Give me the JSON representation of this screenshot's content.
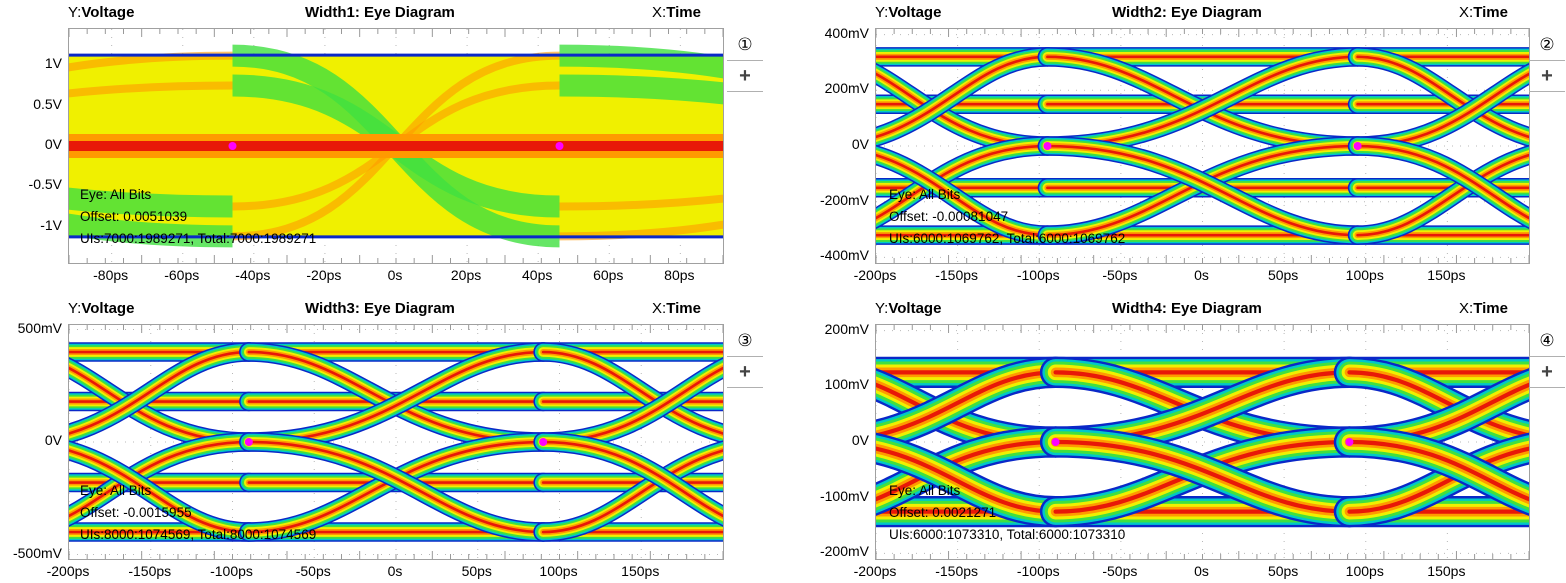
{
  "colors": {
    "low": "#0a28c8",
    "mid1": "#00c8c8",
    "mid2": "#40e040",
    "mid3": "#f0f000",
    "high1": "#ff9a00",
    "high2": "#e81808",
    "marker": "#ff00ff",
    "grid": "#b8b8b8",
    "frame": "#a0a0a0"
  },
  "chart_data": [
    {
      "type": "heatmap",
      "id": "1",
      "title": "Width1: Eye Diagram",
      "ylabel_prefix": "Y:",
      "ylabel": "Voltage",
      "xlabel_prefix": "X:",
      "xlabel": "Time",
      "xlim": [
        -92,
        92
      ],
      "x_unit": "ps",
      "ylim": [
        -1.45,
        1.45
      ],
      "y_unit": "V",
      "x_ticks": [
        {
          "v": -80,
          "label": "-80ps"
        },
        {
          "v": -60,
          "label": "-60ps"
        },
        {
          "v": -40,
          "label": "-40ps"
        },
        {
          "v": -20,
          "label": "-20ps"
        },
        {
          "v": 0,
          "label": "0s"
        },
        {
          "v": 20,
          "label": "20ps"
        },
        {
          "v": 40,
          "label": "40ps"
        },
        {
          "v": 60,
          "label": "60ps"
        },
        {
          "v": 80,
          "label": "80ps"
        }
      ],
      "y_ticks": [
        {
          "v": 1,
          "label": "1V"
        },
        {
          "v": 0.5,
          "label": "0.5V"
        },
        {
          "v": 0,
          "label": "0V"
        },
        {
          "v": -0.5,
          "label": "-0.5V"
        },
        {
          "v": -1,
          "label": "-1V"
        }
      ],
      "crossings_x": [
        -46,
        46
      ],
      "crossing_y": 0,
      "levels": [
        1.12,
        0.75,
        0.0,
        -0.75,
        -1.12
      ],
      "style": "dense",
      "eye": "Eye: All Bits",
      "offset": "Offset: 0.0051039",
      "uis": "UIs:7000:1989271, Total:7000:1989271",
      "badge": "①",
      "plus": "+"
    },
    {
      "type": "heatmap",
      "id": "2",
      "title": "Width2: Eye Diagram",
      "ylabel_prefix": "Y:",
      "ylabel": "Voltage",
      "xlabel_prefix": "X:",
      "xlabel": "Time",
      "xlim": [
        -200,
        200
      ],
      "x_unit": "ps",
      "ylim": [
        -420,
        420
      ],
      "y_unit": "mV",
      "x_ticks": [
        {
          "v": -200,
          "label": "-200ps"
        },
        {
          "v": -150,
          "label": "-150ps"
        },
        {
          "v": -100,
          "label": "-100ps"
        },
        {
          "v": -50,
          "label": "-50ps"
        },
        {
          "v": 0,
          "label": "0s"
        },
        {
          "v": 50,
          "label": "50ps"
        },
        {
          "v": 100,
          "label": "100ps"
        },
        {
          "v": 150,
          "label": "150ps"
        }
      ],
      "y_ticks": [
        {
          "v": 400,
          "label": "400mV"
        },
        {
          "v": 200,
          "label": "200mV"
        },
        {
          "v": 0,
          "label": "0V"
        },
        {
          "v": -200,
          "label": "-200mV"
        },
        {
          "v": -400,
          "label": "-400mV"
        }
      ],
      "crossings_x": [
        -95,
        95
      ],
      "crossing_y": 0,
      "levels": [
        320,
        150,
        -150,
        -320
      ],
      "style": "pam",
      "eye": "Eye: All Bits",
      "offset": "Offset: -0.00081047",
      "uis": "UIs:6000:1069762, Total:6000:1069762",
      "badge": "②",
      "plus": "+"
    },
    {
      "type": "heatmap",
      "id": "3",
      "title": "Width3: Eye Diagram",
      "ylabel_prefix": "Y:",
      "ylabel": "Voltage",
      "xlabel_prefix": "X:",
      "xlabel": "Time",
      "xlim": [
        -200,
        200
      ],
      "x_unit": "ps",
      "ylim": [
        -520,
        520
      ],
      "y_unit": "mV",
      "x_ticks": [
        {
          "v": -200,
          "label": "-200ps"
        },
        {
          "v": -150,
          "label": "-150ps"
        },
        {
          "v": -100,
          "label": "-100ps"
        },
        {
          "v": -50,
          "label": "-50ps"
        },
        {
          "v": 0,
          "label": "0s"
        },
        {
          "v": 50,
          "label": "50ps"
        },
        {
          "v": 100,
          "label": "100ps"
        },
        {
          "v": 150,
          "label": "150ps"
        }
      ],
      "y_ticks": [
        {
          "v": 500,
          "label": "500mV"
        },
        {
          "v": 0,
          "label": "0V"
        },
        {
          "v": -500,
          "label": "-500mV"
        }
      ],
      "crossings_x": [
        -90,
        90
      ],
      "crossing_y": 0,
      "levels": [
        400,
        180,
        -180,
        -400
      ],
      "style": "pam",
      "eye": "Eye: All Bits",
      "offset": "Offset: -0.0015955",
      "uis": "UIs:8000:1074569, Total:8000:1074569",
      "badge": "③",
      "plus": "+"
    },
    {
      "type": "heatmap",
      "id": "4",
      "title": "Width4: Eye Diagram",
      "ylabel_prefix": "Y:",
      "ylabel": "Voltage",
      "xlabel_prefix": "X:",
      "xlabel": "Time",
      "xlim": [
        -200,
        200
      ],
      "x_unit": "ps",
      "ylim": [
        -210,
        210
      ],
      "y_unit": "mV",
      "x_ticks": [
        {
          "v": -200,
          "label": "-200ps"
        },
        {
          "v": -150,
          "label": "-150ps"
        },
        {
          "v": -100,
          "label": "-100ps"
        },
        {
          "v": -50,
          "label": "-50ps"
        },
        {
          "v": 0,
          "label": "0s"
        },
        {
          "v": 50,
          "label": "50ps"
        },
        {
          "v": 100,
          "label": "100ps"
        },
        {
          "v": 150,
          "label": "150ps"
        }
      ],
      "y_ticks": [
        {
          "v": 200,
          "label": "200mV"
        },
        {
          "v": 100,
          "label": "100mV"
        },
        {
          "v": 0,
          "label": "0V"
        },
        {
          "v": -100,
          "label": "-100mV"
        },
        {
          "v": -200,
          "label": "-200mV"
        }
      ],
      "crossings_x": [
        -90,
        90
      ],
      "crossing_y": 0,
      "levels": [
        125,
        -125
      ],
      "style": "nrz",
      "eye": "Eye: All Bits",
      "offset": "Offset: 0.0021271",
      "uis": "UIs:6000:1073310, Total:6000:1073310",
      "badge": "④",
      "plus": "+"
    }
  ]
}
